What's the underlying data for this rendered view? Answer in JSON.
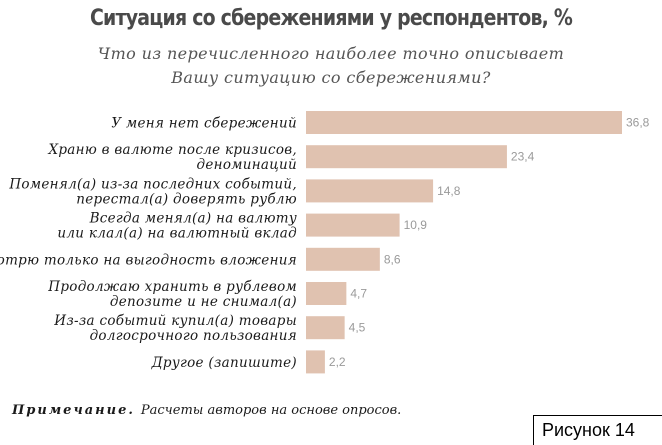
{
  "title": "Ситуация со сбережениями у респондентов, %",
  "subtitle_line1": "Что из перечисленного наиболее точно описывает",
  "subtitle_line2": "Вашу ситуацию со сбережениями?",
  "note_head": "Примечание.",
  "note_text": "Расчеты авторов на основе опросов.",
  "figure_label": "Рисунок 14",
  "colors": {
    "bar": "#e0c2b0",
    "value_text": "#9a9a9a"
  },
  "chart_data": {
    "type": "bar",
    "orientation": "horizontal",
    "categories": [
      [
        "У меня нет сбережений"
      ],
      [
        "Храню в валюте после кризисов,",
        "деноминаций"
      ],
      [
        "Поменял(а) из-за последних событий,",
        "перестал(а) доверять рублю"
      ],
      [
        "Всегда менял(а) на валюту",
        "или клал(а) на валютный вклад"
      ],
      [
        "Смотрю только на выгодность вложения"
      ],
      [
        "Продолжаю хранить в рублевом",
        "депозите и не снимал(а)"
      ],
      [
        "Из-за событий купил(а) товары",
        "долгосрочного пользования"
      ],
      [
        "Другое (запишите)"
      ]
    ],
    "values": [
      36.8,
      23.4,
      14.8,
      10.9,
      8.6,
      4.7,
      4.5,
      2.2
    ],
    "value_labels": [
      "36,8",
      "23,4",
      "14,8",
      "10,9",
      "8,6",
      "4,7",
      "4,5",
      "2,2"
    ],
    "xlim": [
      0,
      36.8
    ],
    "unit": "%"
  }
}
